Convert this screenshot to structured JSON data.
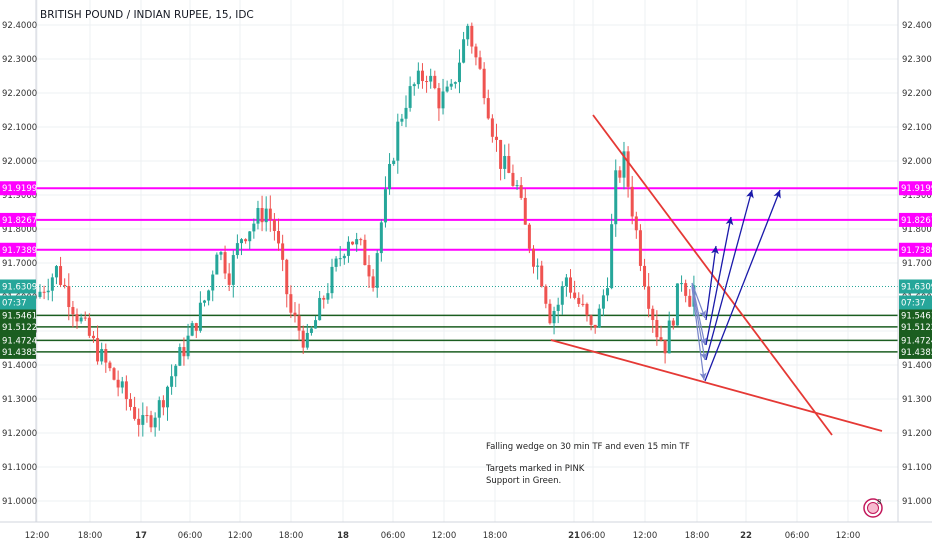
{
  "chart": {
    "title": "BRITISH POUND / INDIAN RUPEE, 15, IDC"
  },
  "annotation": {
    "line1": "Falling wedge on 30 min TF and even 15 min TF",
    "line2": "Targets marked in PINK",
    "line3": "Support in Green."
  },
  "badge": {
    "text": "8"
  },
  "colors": {
    "up": "#26a69a",
    "down": "#ef5350",
    "pink": "#ff00ff",
    "green": "#1b5e20",
    "wedge": "#e53935",
    "arrow": "#1a1aaa",
    "arrow_light": "#7986cb",
    "grid": "#eef0f3"
  },
  "chart_data": {
    "type": "candlestick",
    "title": "BRITISH POUND / INDIAN RUPEE, 15, IDC",
    "ylim": [
      90.92,
      92.46
    ],
    "y_ticks": [
      "92.4000",
      "92.3000",
      "92.2000",
      "92.1000",
      "92.0000",
      "91.9000",
      "91.8000",
      "91.7000",
      "91.6000",
      "91.5000",
      "91.4000",
      "91.3000",
      "91.2000",
      "91.1000",
      "91.0000"
    ],
    "x_ticks": [
      "12:00",
      "18:00",
      "17",
      "06:00",
      "12:00",
      "18:00",
      "18",
      "06:00",
      "12:00",
      "18:00",
      "21",
      "06:00",
      "12:00",
      "18:00",
      "22",
      "06:00",
      "12:00"
    ],
    "resistance_targets": [
      {
        "value": 91.9199,
        "label": "91.9199"
      },
      {
        "value": 91.8267,
        "label": "91.8267"
      },
      {
        "value": 91.7389,
        "label": "91.7389"
      }
    ],
    "supports": [
      {
        "value": 91.5461,
        "label": "91.5461"
      },
      {
        "value": 91.5122,
        "label": "91.5122"
      },
      {
        "value": 91.4724,
        "label": "91.4724"
      },
      {
        "value": 91.4385,
        "label": "91.4385"
      }
    ],
    "last_price": {
      "value": 91.6309,
      "label": "91.6309",
      "countdown": "07:37"
    },
    "price_path": [
      [
        0,
        91.6
      ],
      [
        5,
        91.68
      ],
      [
        10,
        91.55
      ],
      [
        14,
        91.46
      ],
      [
        18,
        91.38
      ],
      [
        22,
        91.3
      ],
      [
        26,
        91.22
      ],
      [
        30,
        91.28
      ],
      [
        34,
        91.4
      ],
      [
        38,
        91.5
      ],
      [
        42,
        91.62
      ],
      [
        44,
        91.75
      ],
      [
        47,
        91.67
      ],
      [
        50,
        91.78
      ],
      [
        53,
        91.82
      ],
      [
        56,
        91.86
      ],
      [
        58,
        91.8
      ],
      [
        62,
        91.55
      ],
      [
        66,
        91.46
      ],
      [
        70,
        91.6
      ],
      [
        74,
        91.72
      ],
      [
        76,
        91.78
      ],
      [
        79,
        91.74
      ],
      [
        82,
        91.66
      ],
      [
        84,
        91.82
      ],
      [
        86,
        91.96
      ],
      [
        88,
        92.1
      ],
      [
        90,
        92.18
      ],
      [
        92,
        92.22
      ],
      [
        95,
        92.26
      ],
      [
        98,
        92.18
      ],
      [
        101,
        92.2
      ],
      [
        103,
        92.3
      ],
      [
        105,
        92.4
      ],
      [
        107,
        92.3
      ],
      [
        109,
        92.22
      ],
      [
        111,
        92.1
      ],
      [
        113,
        92.0
      ],
      [
        115,
        91.96
      ],
      [
        117,
        91.92
      ],
      [
        119,
        91.8
      ],
      [
        121,
        91.72
      ],
      [
        123,
        91.66
      ],
      [
        125,
        91.55
      ],
      [
        127,
        91.58
      ],
      [
        129,
        91.66
      ],
      [
        131,
        91.6
      ],
      [
        133,
        91.56
      ],
      [
        135,
        91.5
      ],
      [
        137,
        91.55
      ],
      [
        139,
        91.66
      ],
      [
        141,
        91.94
      ],
      [
        143,
        92.0
      ],
      [
        145,
        91.86
      ],
      [
        147,
        91.72
      ],
      [
        149,
        91.6
      ],
      [
        151,
        91.5
      ],
      [
        153,
        91.46
      ],
      [
        155,
        91.55
      ],
      [
        157,
        91.66
      ],
      [
        159,
        91.6
      ],
      [
        160,
        91.63
      ]
    ]
  }
}
